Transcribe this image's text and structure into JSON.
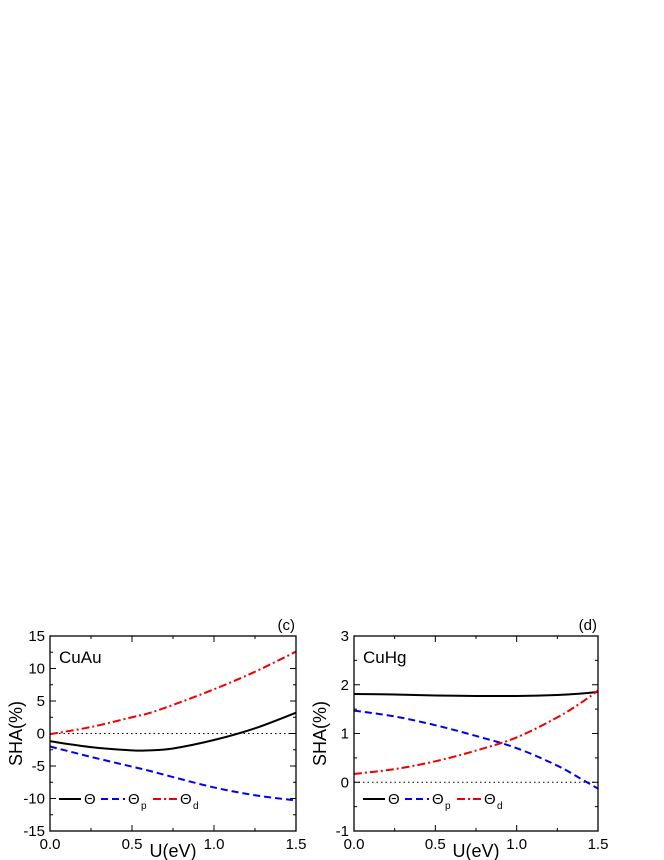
{
  "chart_data": [
    {
      "type": "line",
      "panel_tag": "(c)",
      "title": "CuAu",
      "xlabel": "U(eV)",
      "ylabel": "SHA(%)",
      "xlim": [
        0.0,
        1.5
      ],
      "ylim": [
        -15,
        15
      ],
      "xticks": [
        "0.0",
        "0.5",
        "1.0",
        "1.5"
      ],
      "yticks": [
        "-15",
        "-10",
        "-5",
        "0",
        "5",
        "10",
        "15"
      ],
      "reference_line": 0,
      "legend_placement": "bottom-left",
      "x": [
        0.0,
        0.25,
        0.5,
        0.6,
        0.75,
        1.0,
        1.25,
        1.5
      ],
      "series": [
        {
          "name": "Θ",
          "style": "solid",
          "color": "#000000",
          "values": [
            -1.2,
            -2.1,
            -2.6,
            -2.6,
            -2.3,
            -1.0,
            0.8,
            3.2
          ]
        },
        {
          "name": "Θ",
          "sub": "p",
          "style": "dashed",
          "color": "#0000ee",
          "values": [
            -2.0,
            -3.6,
            -5.1,
            -5.7,
            -6.7,
            -8.3,
            -9.5,
            -10.3
          ]
        },
        {
          "name": "Θ",
          "sub": "d",
          "style": "dashdot",
          "color": "#ee0000",
          "values": [
            -0.1,
            1.0,
            2.5,
            3.1,
            4.4,
            6.8,
            9.5,
            12.6
          ]
        }
      ]
    },
    {
      "type": "line",
      "panel_tag": "(d)",
      "title": "CuHg",
      "xlabel": "U(eV)",
      "ylabel": "SHA(%)",
      "xlim": [
        0.0,
        1.5
      ],
      "ylim": [
        -1,
        3
      ],
      "xticks": [
        "0.0",
        "0.5",
        "1.0",
        "1.5"
      ],
      "yticks": [
        "-1",
        "0",
        "1",
        "2",
        "3"
      ],
      "reference_line": 0,
      "legend_placement": "bottom-left",
      "x": [
        0.0,
        0.25,
        0.5,
        0.75,
        1.0,
        1.25,
        1.4,
        1.5
      ],
      "series": [
        {
          "name": "Θ",
          "style": "solid",
          "color": "#000000",
          "values": [
            1.81,
            1.8,
            1.78,
            1.77,
            1.77,
            1.79,
            1.82,
            1.85
          ]
        },
        {
          "name": "Θ",
          "sub": "p",
          "style": "dashed",
          "color": "#0000ee",
          "values": [
            1.47,
            1.35,
            1.17,
            0.95,
            0.7,
            0.34,
            0.06,
            -0.13
          ]
        },
        {
          "name": "Θ",
          "sub": "d",
          "style": "dashdot",
          "color": "#ee0000",
          "values": [
            0.17,
            0.27,
            0.43,
            0.65,
            0.92,
            1.33,
            1.64,
            1.88
          ]
        }
      ]
    }
  ]
}
